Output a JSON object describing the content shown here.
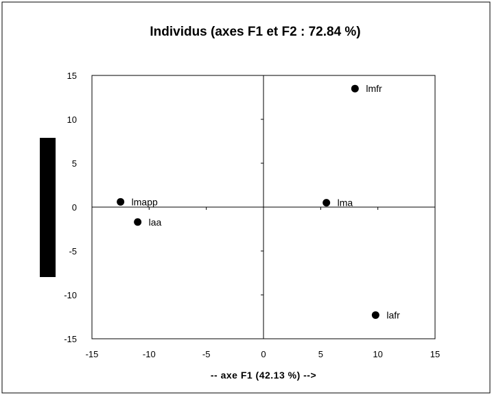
{
  "chart_data": {
    "type": "scatter",
    "title": "Individus (axes F1 et F2 : 72.84 %)",
    "xlabel": "-- axe F1 (42.13 %) -->",
    "ylabel": "",
    "xlim": [
      -15,
      15
    ],
    "ylim": [
      -15,
      15
    ],
    "xticks": [
      -15,
      -10,
      -5,
      0,
      5,
      10,
      15
    ],
    "yticks": [
      15,
      10,
      5,
      0,
      -5,
      -10,
      -15
    ],
    "grid": false,
    "points": [
      {
        "label": "lmfr",
        "x": 8.0,
        "y": 13.5
      },
      {
        "label": "lmapp",
        "x": -12.5,
        "y": 0.6
      },
      {
        "label": "lma",
        "x": 5.5,
        "y": 0.5
      },
      {
        "label": "laa",
        "x": -11.0,
        "y": -1.7
      },
      {
        "label": "lafr",
        "x": 9.8,
        "y": -12.3
      }
    ],
    "colors": {
      "point": "#000000",
      "axis": "#000000",
      "border": "#000000"
    }
  }
}
